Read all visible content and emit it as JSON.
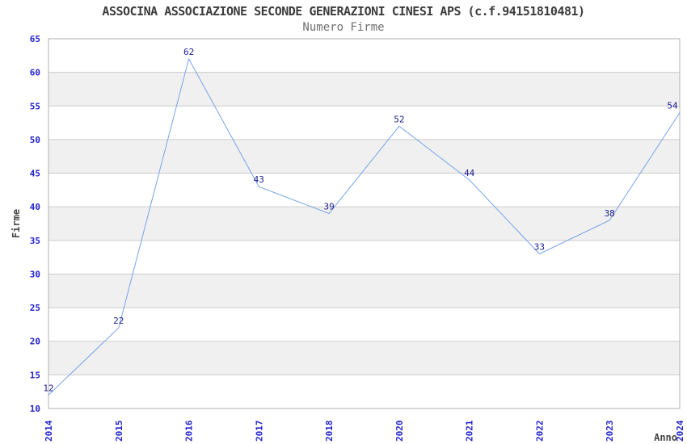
{
  "chart_data": {
    "type": "line",
    "title": "ASSOCINA ASSOCIAZIONE SECONDE GENERAZIONI CINESI APS (c.f.94151810481)",
    "subtitle": "Numero Firme",
    "categories": [
      "2014",
      "2015",
      "2016",
      "2017",
      "2018",
      "2020",
      "2021",
      "2022",
      "2023",
      "2024"
    ],
    "values": [
      12,
      22,
      62,
      43,
      39,
      52,
      44,
      33,
      38,
      54
    ],
    "xlabel": "Anno",
    "ylabel": "Firme",
    "ylim": [
      10,
      65
    ],
    "ytick_step": 5,
    "ytick_labels": [
      "10",
      "15",
      "20",
      "25",
      "30",
      "35",
      "40",
      "45",
      "50",
      "55",
      "60",
      "65"
    ],
    "grid": "horizontal",
    "alternating_bands": true,
    "legend": "none",
    "colors": {
      "line": "#76a4e8",
      "data_label": "#1a1a8c",
      "tick_label": "#2323cc",
      "band": "#f0f0f0",
      "grid_line": "#cccccc",
      "plot_border": "#b0b0b0",
      "axis_title": "#474747",
      "title_text": "#3c3c3c",
      "subtitle_text": "#707070"
    }
  }
}
